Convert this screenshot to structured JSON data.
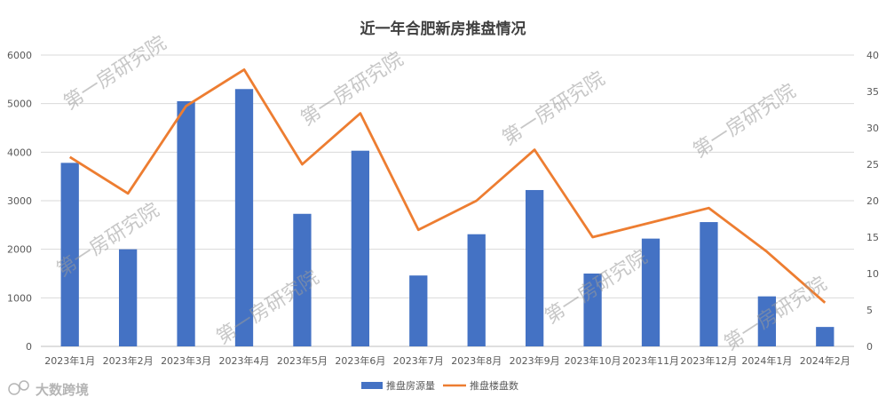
{
  "chart_data": {
    "type": "bar",
    "title": "近一年合肥新房推盘情况",
    "categories": [
      "2023年1月",
      "2023年2月",
      "2023年3月",
      "2023年4月",
      "2023年5月",
      "2023年6月",
      "2023年7月",
      "2023年8月",
      "2023年9月",
      "2023年10月",
      "2023年11月",
      "2023年12月",
      "2024年1月",
      "2024年2月"
    ],
    "series": [
      {
        "name": "推盘房源量",
        "type": "bar",
        "axis": "left",
        "color": "#4472c4",
        "values": [
          3780,
          2000,
          5050,
          5300,
          2730,
          4030,
          1460,
          2310,
          3220,
          1500,
          2220,
          2560,
          1030,
          400
        ]
      },
      {
        "name": "推盘楼盘数",
        "type": "line",
        "axis": "right",
        "color": "#ed7d31",
        "values": [
          26,
          21,
          33,
          38,
          25,
          32,
          16,
          20,
          27,
          15,
          17,
          19,
          13,
          6
        ]
      }
    ],
    "ylim": [
      0,
      6000
    ],
    "yticks": [
      0,
      1000,
      2000,
      3000,
      4000,
      5000,
      6000
    ],
    "y2lim": [
      0,
      40
    ],
    "y2ticks": [
      0,
      5,
      10,
      15,
      20,
      25,
      30,
      35,
      40
    ],
    "grid": true,
    "legend_position": "bottom"
  },
  "watermark": "第一房研究院",
  "brand": "大数跨境"
}
